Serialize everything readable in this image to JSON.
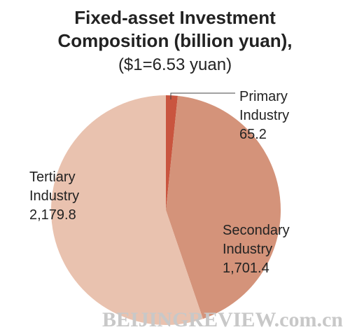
{
  "chart_data": {
    "type": "pie",
    "title": "Fixed-asset Investment Composition (billion yuan),",
    "subtitle": "($1=6.53 yuan)",
    "categories": [
      "Primary Industry",
      "Secondary Industry",
      "Tertiary Industry"
    ],
    "values": [
      65.2,
      1701.4,
      2179.8
    ],
    "value_labels": [
      "65.2",
      "1,701.4",
      "2,179.8"
    ],
    "colors": [
      "#c9553f",
      "#d4937a",
      "#e9c2af"
    ],
    "watermark": "BEIJINGREVIEW.com.cn"
  }
}
